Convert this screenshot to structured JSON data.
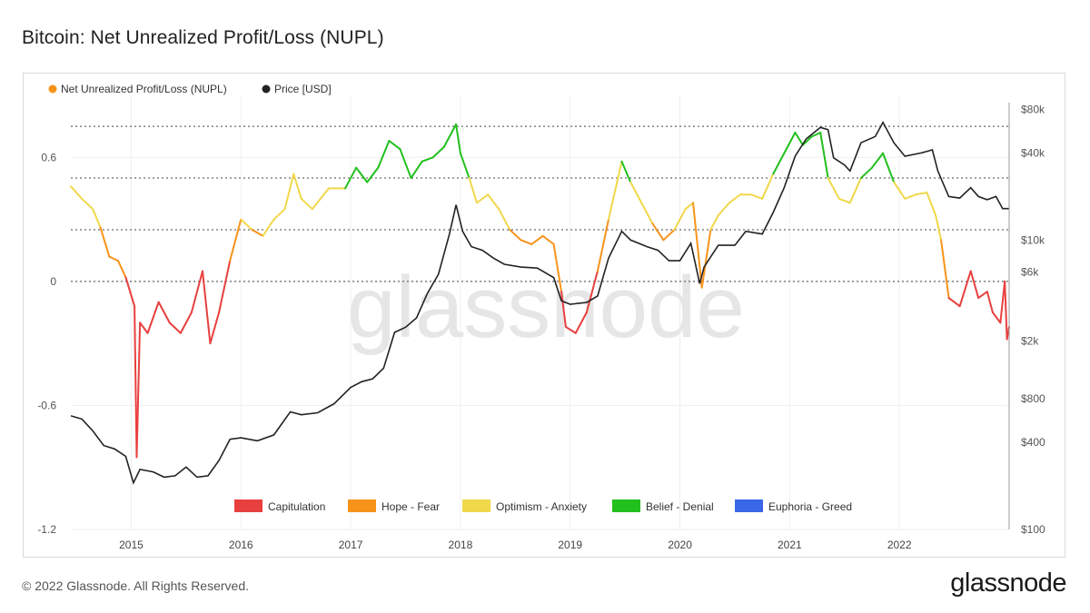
{
  "page": {
    "title": "Bitcoin: Net Unrealized Profit/Loss (NUPL)",
    "copyright": "© 2022 Glassnode. All Rights Reserved.",
    "brand": "glassnode",
    "watermark": "glassnode"
  },
  "chart_data": {
    "type": "line",
    "title": "Bitcoin: Net Unrealized Profit/Loss (NUPL)",
    "legend_placement": "top-left",
    "series": [
      {
        "name": "Net Unrealized Profit/Loss (NUPL)",
        "axis": "left",
        "color": "#f7931a",
        "points": [
          [
            2014.45,
            0.46
          ],
          [
            2014.55,
            0.4
          ],
          [
            2014.65,
            0.35
          ],
          [
            2014.72,
            0.26
          ],
          [
            2014.8,
            0.12
          ],
          [
            2014.88,
            0.1
          ],
          [
            2014.95,
            0.02
          ],
          [
            2015.03,
            -0.12
          ],
          [
            2015.05,
            -0.85
          ],
          [
            2015.08,
            -0.2
          ],
          [
            2015.15,
            -0.25
          ],
          [
            2015.25,
            -0.1
          ],
          [
            2015.35,
            -0.2
          ],
          [
            2015.45,
            -0.25
          ],
          [
            2015.55,
            -0.15
          ],
          [
            2015.65,
            0.05
          ],
          [
            2015.72,
            -0.3
          ],
          [
            2015.8,
            -0.15
          ],
          [
            2015.9,
            0.1
          ],
          [
            2016.0,
            0.3
          ],
          [
            2016.1,
            0.25
          ],
          [
            2016.2,
            0.22
          ],
          [
            2016.3,
            0.3
          ],
          [
            2016.4,
            0.35
          ],
          [
            2016.48,
            0.52
          ],
          [
            2016.55,
            0.4
          ],
          [
            2016.65,
            0.35
          ],
          [
            2016.8,
            0.45
          ],
          [
            2016.95,
            0.45
          ],
          [
            2017.05,
            0.55
          ],
          [
            2017.15,
            0.48
          ],
          [
            2017.25,
            0.55
          ],
          [
            2017.35,
            0.68
          ],
          [
            2017.45,
            0.64
          ],
          [
            2017.55,
            0.5
          ],
          [
            2017.65,
            0.58
          ],
          [
            2017.75,
            0.6
          ],
          [
            2017.85,
            0.65
          ],
          [
            2017.96,
            0.76
          ],
          [
            2018.0,
            0.62
          ],
          [
            2018.08,
            0.5
          ],
          [
            2018.15,
            0.38
          ],
          [
            2018.25,
            0.42
          ],
          [
            2018.35,
            0.35
          ],
          [
            2018.45,
            0.25
          ],
          [
            2018.55,
            0.2
          ],
          [
            2018.65,
            0.18
          ],
          [
            2018.75,
            0.22
          ],
          [
            2018.85,
            0.18
          ],
          [
            2018.92,
            -0.05
          ],
          [
            2018.96,
            -0.22
          ],
          [
            2019.05,
            -0.25
          ],
          [
            2019.15,
            -0.15
          ],
          [
            2019.25,
            0.05
          ],
          [
            2019.35,
            0.3
          ],
          [
            2019.47,
            0.58
          ],
          [
            2019.55,
            0.48
          ],
          [
            2019.65,
            0.38
          ],
          [
            2019.75,
            0.28
          ],
          [
            2019.85,
            0.2
          ],
          [
            2019.95,
            0.25
          ],
          [
            2020.05,
            0.35
          ],
          [
            2020.12,
            0.38
          ],
          [
            2020.2,
            -0.03
          ],
          [
            2020.28,
            0.25
          ],
          [
            2020.35,
            0.32
          ],
          [
            2020.45,
            0.38
          ],
          [
            2020.55,
            0.42
          ],
          [
            2020.65,
            0.42
          ],
          [
            2020.75,
            0.4
          ],
          [
            2020.85,
            0.52
          ],
          [
            2020.95,
            0.62
          ],
          [
            2021.05,
            0.72
          ],
          [
            2021.12,
            0.66
          ],
          [
            2021.2,
            0.7
          ],
          [
            2021.28,
            0.72
          ],
          [
            2021.35,
            0.5
          ],
          [
            2021.45,
            0.4
          ],
          [
            2021.55,
            0.38
          ],
          [
            2021.65,
            0.5
          ],
          [
            2021.75,
            0.55
          ],
          [
            2021.85,
            0.62
          ],
          [
            2021.95,
            0.48
          ],
          [
            2022.05,
            0.4
          ],
          [
            2022.15,
            0.42
          ],
          [
            2022.25,
            0.43
          ],
          [
            2022.33,
            0.32
          ],
          [
            2022.38,
            0.2
          ],
          [
            2022.45,
            -0.08
          ],
          [
            2022.55,
            -0.12
          ],
          [
            2022.65,
            0.05
          ],
          [
            2022.72,
            -0.08
          ],
          [
            2022.8,
            -0.05
          ],
          [
            2022.85,
            -0.15
          ],
          [
            2022.92,
            -0.2
          ],
          [
            2022.96,
            0.0
          ],
          [
            2022.98,
            -0.28
          ],
          [
            2023.0,
            -0.22
          ]
        ]
      },
      {
        "name": "Price [USD]",
        "axis": "right",
        "color": "#222222",
        "points": [
          [
            2014.45,
            610
          ],
          [
            2014.55,
            580
          ],
          [
            2014.65,
            480
          ],
          [
            2014.75,
            380
          ],
          [
            2014.85,
            360
          ],
          [
            2014.95,
            320
          ],
          [
            2015.02,
            210
          ],
          [
            2015.08,
            260
          ],
          [
            2015.2,
            250
          ],
          [
            2015.3,
            230
          ],
          [
            2015.4,
            235
          ],
          [
            2015.5,
            270
          ],
          [
            2015.6,
            230
          ],
          [
            2015.7,
            235
          ],
          [
            2015.8,
            300
          ],
          [
            2015.9,
            420
          ],
          [
            2016.0,
            430
          ],
          [
            2016.15,
            410
          ],
          [
            2016.3,
            450
          ],
          [
            2016.45,
            650
          ],
          [
            2016.55,
            620
          ],
          [
            2016.7,
            640
          ],
          [
            2016.85,
            740
          ],
          [
            2017.0,
            960
          ],
          [
            2017.1,
            1050
          ],
          [
            2017.2,
            1100
          ],
          [
            2017.3,
            1300
          ],
          [
            2017.4,
            2300
          ],
          [
            2017.5,
            2500
          ],
          [
            2017.6,
            2900
          ],
          [
            2017.7,
            4300
          ],
          [
            2017.8,
            5800
          ],
          [
            2017.9,
            11000
          ],
          [
            2017.96,
            17500
          ],
          [
            2018.02,
            11500
          ],
          [
            2018.1,
            9000
          ],
          [
            2018.2,
            8500
          ],
          [
            2018.3,
            7500
          ],
          [
            2018.4,
            6800
          ],
          [
            2018.55,
            6500
          ],
          [
            2018.7,
            6400
          ],
          [
            2018.85,
            5500
          ],
          [
            2018.92,
            3800
          ],
          [
            2019.0,
            3600
          ],
          [
            2019.15,
            3700
          ],
          [
            2019.25,
            4100
          ],
          [
            2019.35,
            7500
          ],
          [
            2019.47,
            11500
          ],
          [
            2019.55,
            10000
          ],
          [
            2019.7,
            9000
          ],
          [
            2019.8,
            8500
          ],
          [
            2019.9,
            7200
          ],
          [
            2020.0,
            7200
          ],
          [
            2020.1,
            9500
          ],
          [
            2020.18,
            5000
          ],
          [
            2020.22,
            6500
          ],
          [
            2020.35,
            9200
          ],
          [
            2020.5,
            9200
          ],
          [
            2020.6,
            11500
          ],
          [
            2020.75,
            11000
          ],
          [
            2020.85,
            15500
          ],
          [
            2020.95,
            23000
          ],
          [
            2021.05,
            38000
          ],
          [
            2021.15,
            50000
          ],
          [
            2021.28,
            60000
          ],
          [
            2021.35,
            58000
          ],
          [
            2021.4,
            37000
          ],
          [
            2021.5,
            33000
          ],
          [
            2021.55,
            30000
          ],
          [
            2021.65,
            47000
          ],
          [
            2021.78,
            52000
          ],
          [
            2021.85,
            65000
          ],
          [
            2021.95,
            47000
          ],
          [
            2022.05,
            38000
          ],
          [
            2022.2,
            40000
          ],
          [
            2022.3,
            42000
          ],
          [
            2022.35,
            30000
          ],
          [
            2022.45,
            20000
          ],
          [
            2022.55,
            19500
          ],
          [
            2022.65,
            23000
          ],
          [
            2022.72,
            20000
          ],
          [
            2022.8,
            19000
          ],
          [
            2022.88,
            20000
          ],
          [
            2022.94,
            16500
          ],
          [
            2023.0,
            16500
          ]
        ]
      }
    ],
    "y_left": {
      "ticks": [
        0.6,
        0,
        -0.6,
        -1.2
      ],
      "tick_labels": [
        "0.6",
        "0",
        "-0.6",
        "-1.2"
      ],
      "range": [
        -1.2,
        0.9
      ]
    },
    "y_right": {
      "scale": "log",
      "ticks": [
        80000,
        40000,
        10000,
        6000,
        2000,
        800,
        400,
        100
      ],
      "tick_labels": [
        "$80k",
        "$40k",
        "$10k",
        "$6k",
        "$2k",
        "$800",
        "$400",
        "$100"
      ],
      "range": [
        100,
        100000
      ]
    },
    "x": {
      "ticks": [
        2015,
        2016,
        2017,
        2018,
        2019,
        2020,
        2021,
        2022
      ],
      "tick_labels": [
        "2015",
        "2016",
        "2017",
        "2018",
        "2019",
        "2020",
        "2021",
        "2022"
      ],
      "range": [
        2014.45,
        2023.0
      ]
    },
    "zones": [
      {
        "name": "Capitulation",
        "color": "#e8403f",
        "range": [
          -1.2,
          0
        ]
      },
      {
        "name": "Hope - Fear",
        "color": "#f7931a",
        "range": [
          0,
          0.25
        ]
      },
      {
        "name": "Optimism - Anxiety",
        "color": "#f0d84a",
        "range": [
          0.25,
          0.5
        ]
      },
      {
        "name": "Belief - Denial",
        "color": "#22c01e",
        "range": [
          0.5,
          0.75
        ]
      },
      {
        "name": "Euphoria - Greed",
        "color": "#3a66e8",
        "range": [
          0.75,
          1.0
        ]
      }
    ],
    "reference_lines": [
      0.75,
      0.5,
      0.25,
      0
    ],
    "grid": true
  }
}
